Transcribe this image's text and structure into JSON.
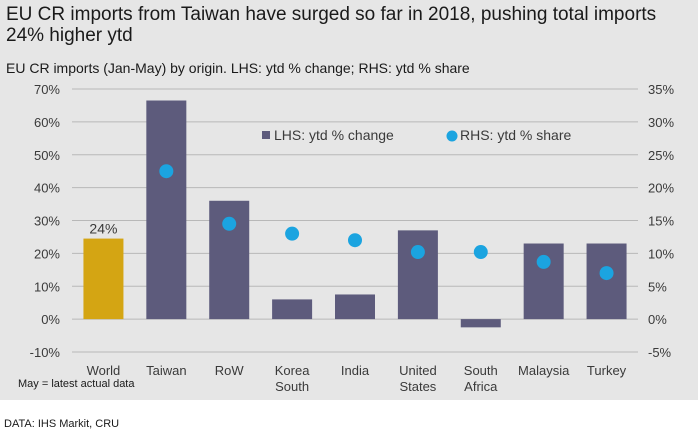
{
  "chart_data": {
    "type": "bar",
    "title": "EU CR imports from Taiwan have surged so far in 2018, pushing total imports 24% higher ytd",
    "subtitle": "EU CR imports (Jan-May) by origin. LHS: ytd % change; RHS: ytd % share",
    "categories": [
      [
        "World"
      ],
      [
        "Taiwan"
      ],
      [
        "RoW"
      ],
      [
        "Korea",
        "South"
      ],
      [
        "India"
      ],
      [
        "United",
        "States"
      ],
      [
        "South",
        "Africa"
      ],
      [
        "Malaysia"
      ],
      [
        "Turkey"
      ]
    ],
    "series": [
      {
        "name": "LHS: ytd % change",
        "type": "bar",
        "axis": "left",
        "values": [
          24.5,
          66.5,
          36,
          6,
          7.5,
          27,
          -2.5,
          23,
          23
        ],
        "highlight_index": 0,
        "highlight_label": "24%"
      },
      {
        "name": "RHS: ytd % share",
        "type": "scatter",
        "axis": "right",
        "values": [
          null,
          22.5,
          14.5,
          13,
          12,
          10.2,
          10.2,
          8.7,
          7
        ]
      }
    ],
    "y_left": {
      "min": -10,
      "max": 70,
      "step": 10,
      "ticks": [
        "-10%",
        "0%",
        "10%",
        "20%",
        "30%",
        "40%",
        "50%",
        "60%",
        "70%"
      ]
    },
    "y_right": {
      "min": -5,
      "max": 35,
      "step": 5,
      "ticks": [
        "-5%",
        "0%",
        "5%",
        "10%",
        "15%",
        "20%",
        "25%",
        "30%",
        "35%"
      ]
    },
    "grid": true,
    "legend": "top-right",
    "colors": {
      "bar": "#5d5b7c",
      "highlight_bar": "#d4a513",
      "dot": "#1ba4e0",
      "grid": "#b8b8b8"
    }
  },
  "footnote": "May = latest actual data",
  "source": "DATA: IHS Markit, CRU"
}
